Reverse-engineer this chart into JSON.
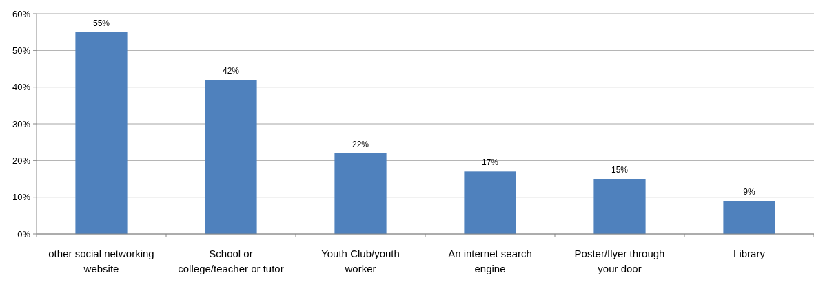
{
  "chart_data": {
    "type": "bar",
    "categories": [
      "other social networking website",
      "School or college/teacher or tutor",
      "Youth Club/youth worker",
      "An internet search engine",
      "Poster/flyer through your door",
      "Library"
    ],
    "values": [
      55,
      42,
      22,
      17,
      15,
      9
    ],
    "value_labels": [
      "55%",
      "42%",
      "22%",
      "17%",
      "15%",
      "9%"
    ],
    "color": "#4f81bd",
    "ylim": [
      0,
      60
    ],
    "yticks": [
      {
        "value": 0,
        "label": "0%"
      },
      {
        "value": 10,
        "label": "10%"
      },
      {
        "value": 20,
        "label": "20%"
      },
      {
        "value": 30,
        "label": "30%"
      },
      {
        "value": 40,
        "label": "40%"
      },
      {
        "value": 50,
        "label": "50%"
      },
      {
        "value": 60,
        "label": "60%"
      }
    ],
    "grid": "y"
  }
}
